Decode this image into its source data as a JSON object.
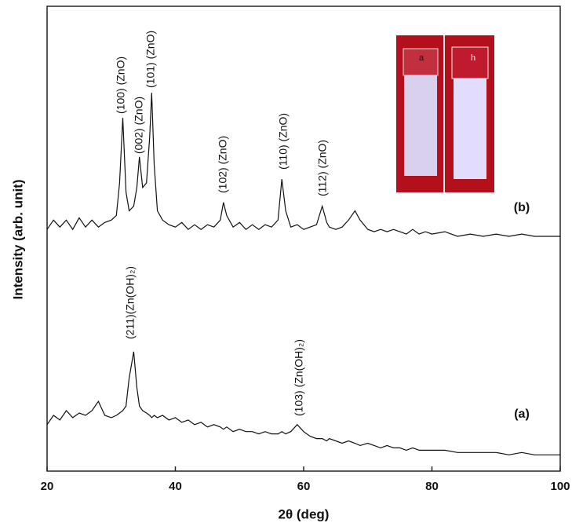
{
  "chart_data": {
    "type": "line",
    "xlabel": "2θ (deg)",
    "ylabel": "Intensity (arb. unit)",
    "xlim": [
      20,
      100
    ],
    "xticks": [
      20,
      40,
      60,
      80,
      100
    ],
    "ylim": [
      0,
      100
    ],
    "x": [
      20,
      21,
      22,
      23,
      24,
      25,
      26,
      27,
      28,
      29,
      30,
      30.8,
      31.3,
      31.8,
      32.3,
      32.8,
      33.5,
      34,
      34.4,
      34.9,
      35.5,
      36,
      36.3,
      36.7,
      37.2,
      38,
      39,
      40,
      41,
      42,
      43,
      44,
      45,
      46,
      47,
      47.5,
      48,
      49,
      50,
      51,
      52,
      53,
      54,
      55,
      56,
      56.6,
      57.2,
      58,
      59,
      60,
      61,
      62,
      62.9,
      63.6,
      64,
      65,
      66,
      67,
      68,
      68.8,
      70,
      71,
      72,
      73,
      74,
      75,
      76,
      77,
      78,
      79,
      80,
      82,
      84,
      86,
      88,
      90,
      92,
      94,
      96,
      98,
      100
    ],
    "series": [
      {
        "name": "(b)",
        "color": "#111111",
        "values": [
          52,
          54,
          52.5,
          54,
          52,
          54.5,
          52.5,
          54,
          52.5,
          53.5,
          54,
          55,
          62,
          76,
          60,
          56,
          57,
          61,
          67.6,
          61,
          62,
          72,
          81.4,
          66,
          56,
          54,
          53,
          52.5,
          53.5,
          52,
          53,
          52,
          53,
          52.5,
          54,
          57.8,
          55,
          52.5,
          53.5,
          52,
          53,
          52,
          53,
          52.5,
          54,
          62.8,
          56,
          52.5,
          53,
          52,
          52.5,
          53,
          57,
          53.5,
          52.5,
          52,
          52.5,
          54,
          56,
          54,
          52,
          51.5,
          52,
          51.5,
          52,
          51.5,
          51,
          52,
          51,
          51.5,
          51,
          51.5,
          50.5,
          51,
          50.5,
          51,
          50.5,
          51,
          50.5,
          50.5,
          50.5
        ]
      },
      {
        "name": "(a)",
        "color": "#111111",
        "values": [
          10,
          12,
          11,
          13,
          11.5,
          12.5,
          12,
          13,
          15,
          12,
          11.5,
          12,
          12.5,
          13,
          14,
          20,
          25.7,
          18,
          14,
          13,
          12.5,
          12,
          11.5,
          12,
          11.5,
          12,
          11,
          11.5,
          10.5,
          11,
          10,
          10.5,
          9.5,
          10,
          9.5,
          9,
          9.5,
          8.5,
          9,
          8.5,
          8.5,
          8,
          8.5,
          8,
          8,
          8.5,
          8,
          8.5,
          10,
          8.5,
          7.5,
          7,
          7,
          6.5,
          7,
          6.5,
          6,
          6.5,
          6,
          5.5,
          6,
          5.5,
          5,
          5.5,
          5,
          5,
          4.5,
          5,
          4.5,
          4.5,
          4.5,
          4.5,
          4,
          4,
          4,
          4,
          3.5,
          4,
          3.5,
          3.5,
          3.5
        ]
      }
    ],
    "annotations": [
      "(100) (ZnO)",
      "(002) (ZnO)",
      "(101) (ZnO)",
      "(102) (ZnO)",
      "(110) (ZnO)",
      "(112) (ZnO)",
      "(211)(Zn(OH)₂)",
      "(103) (Zn(OH)₂)"
    ],
    "inset_labels": [
      "a",
      "h"
    ]
  }
}
